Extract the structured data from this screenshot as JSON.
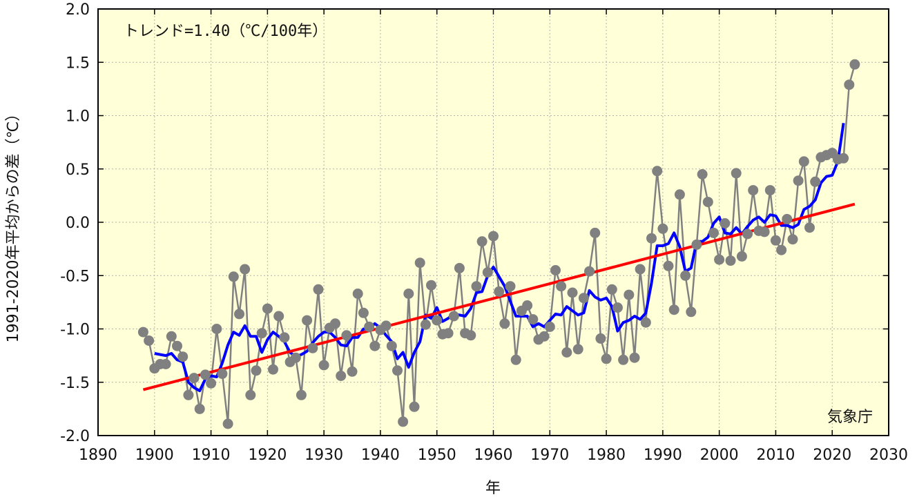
{
  "chart_data": {
    "type": "line",
    "title": "",
    "xlabel": "年",
    "ylabel": "1991-2020年平均からの差（℃）",
    "annotation": "トレンド=1.40（℃/100年）",
    "credit": "気象庁",
    "xlim": [
      1890,
      2030
    ],
    "ylim": [
      -2.0,
      2.0
    ],
    "xticks": [
      1890,
      1900,
      1910,
      1920,
      1930,
      1940,
      1950,
      1960,
      1970,
      1980,
      1990,
      2000,
      2010,
      2020,
      2030
    ],
    "yticks": [
      "2.0",
      "1.5",
      "1.0",
      "0.5",
      "0.0",
      "-0.5",
      "-1.0",
      "-1.5",
      "-2.0"
    ],
    "grid": true,
    "background": "#ffffd8",
    "colors": {
      "annual": "#808080",
      "moving_average": "#0000ff",
      "trend": "#ff0000"
    },
    "series": [
      {
        "key": "annual",
        "x": [
          1898,
          1899,
          1900,
          1901,
          1902,
          1903,
          1904,
          1905,
          1906,
          1907,
          1908,
          1909,
          1910,
          1911,
          1912,
          1913,
          1914,
          1915,
          1916,
          1917,
          1918,
          1919,
          1920,
          1921,
          1922,
          1923,
          1924,
          1925,
          1926,
          1927,
          1928,
          1929,
          1930,
          1931,
          1932,
          1933,
          1934,
          1935,
          1936,
          1937,
          1938,
          1939,
          1940,
          1941,
          1942,
          1943,
          1944,
          1945,
          1946,
          1947,
          1948,
          1949,
          1950,
          1951,
          1952,
          1953,
          1954,
          1955,
          1956,
          1957,
          1958,
          1959,
          1960,
          1961,
          1962,
          1963,
          1964,
          1965,
          1966,
          1967,
          1968,
          1969,
          1970,
          1971,
          1972,
          1973,
          1974,
          1975,
          1976,
          1977,
          1978,
          1979,
          1980,
          1981,
          1982,
          1983,
          1984,
          1985,
          1986,
          1987,
          1988,
          1989,
          1990,
          1991,
          1992,
          1993,
          1994,
          1995,
          1996,
          1997,
          1998,
          1999,
          2000,
          2001,
          2002,
          2003,
          2004,
          2005,
          2006,
          2007,
          2008,
          2009,
          2010,
          2011,
          2012,
          2013,
          2014,
          2015,
          2016,
          2017,
          2018,
          2019,
          2020,
          2021,
          2022,
          2023,
          2024
        ],
        "y": [
          -1.03,
          -1.11,
          -1.37,
          -1.33,
          -1.33,
          -1.07,
          -1.16,
          -1.26,
          -1.62,
          -1.46,
          -1.75,
          -1.43,
          -1.51,
          -1.0,
          -1.42,
          -1.89,
          -0.51,
          -0.86,
          -0.44,
          -1.62,
          -1.39,
          -1.04,
          -0.81,
          -1.38,
          -0.88,
          -1.08,
          -1.31,
          -1.27,
          -1.62,
          -0.92,
          -1.18,
          -0.63,
          -1.34,
          -0.99,
          -0.95,
          -1.44,
          -1.06,
          -1.4,
          -0.67,
          -0.85,
          -0.98,
          -1.16,
          -1.01,
          -0.97,
          -1.16,
          -1.39,
          -1.87,
          -0.67,
          -1.73,
          -0.38,
          -0.96,
          -0.59,
          -0.92,
          -1.05,
          -1.04,
          -0.88,
          -0.43,
          -1.04,
          -1.06,
          -0.6,
          -0.18,
          -0.47,
          -0.13,
          -0.65,
          -0.95,
          -0.6,
          -1.29,
          -0.83,
          -0.78,
          -0.91,
          -1.1,
          -1.07,
          -0.98,
          -0.45,
          -0.6,
          -1.22,
          -0.66,
          -1.19,
          -0.71,
          -0.46,
          -0.1,
          -1.09,
          -1.28,
          -0.63,
          -0.8,
          -1.29,
          -0.68,
          -1.27,
          -0.44,
          -0.94,
          -0.15,
          0.48,
          -0.06,
          -0.41,
          -0.82,
          0.26,
          -0.5,
          -0.84,
          -0.21,
          0.45,
          0.19,
          -0.1,
          -0.35,
          -0.01,
          -0.36,
          0.46,
          -0.32,
          -0.11,
          0.3,
          -0.08,
          -0.09,
          0.3,
          -0.17,
          -0.26,
          0.03,
          -0.16,
          0.39,
          0.57,
          -0.05,
          0.38,
          0.61,
          0.63,
          0.65,
          0.59,
          0.6,
          1.29,
          1.48
        ]
      },
      {
        "key": "moving_average",
        "x": [
          1900,
          1901,
          1902,
          1903,
          1904,
          1905,
          1906,
          1907,
          1908,
          1909,
          1910,
          1911,
          1912,
          1913,
          1914,
          1915,
          1916,
          1917,
          1918,
          1919,
          1920,
          1921,
          1922,
          1923,
          1924,
          1925,
          1926,
          1927,
          1928,
          1929,
          1930,
          1931,
          1932,
          1933,
          1934,
          1935,
          1936,
          1937,
          1938,
          1939,
          1940,
          1941,
          1942,
          1943,
          1944,
          1945,
          1946,
          1947,
          1948,
          1949,
          1950,
          1951,
          1952,
          1953,
          1954,
          1955,
          1956,
          1957,
          1958,
          1959,
          1960,
          1961,
          1962,
          1963,
          1964,
          1965,
          1966,
          1967,
          1968,
          1969,
          1970,
          1971,
          1972,
          1973,
          1974,
          1975,
          1976,
          1977,
          1978,
          1979,
          1980,
          1981,
          1982,
          1983,
          1984,
          1985,
          1986,
          1987,
          1988,
          1989,
          1990,
          1991,
          1992,
          1993,
          1994,
          1995,
          1996,
          1997,
          1998,
          1999,
          2000,
          2001,
          2002,
          2003,
          2004,
          2005,
          2006,
          2007,
          2008,
          2009,
          2010,
          2011,
          2012,
          2013,
          2014,
          2015,
          2016,
          2017,
          2018,
          2019,
          2020,
          2021,
          2022
        ],
        "y": [
          -1.23,
          -1.24,
          -1.25,
          -1.23,
          -1.29,
          -1.31,
          -1.5,
          -1.55,
          -1.58,
          -1.47,
          -1.44,
          -1.45,
          -1.32,
          -1.15,
          -1.03,
          -1.06,
          -0.97,
          -1.07,
          -1.07,
          -1.22,
          -1.1,
          -1.03,
          -1.07,
          -1.12,
          -1.22,
          -1.26,
          -1.24,
          -1.21,
          -1.13,
          -1.07,
          -1.03,
          -1.03,
          -1.08,
          -1.15,
          -1.16,
          -1.08,
          -1.08,
          -1.0,
          -1.0,
          -0.95,
          -0.99,
          -1.06,
          -1.12,
          -1.28,
          -1.22,
          -1.36,
          -1.22,
          -1.12,
          -0.87,
          -0.9,
          -0.8,
          -0.93,
          -0.9,
          -0.86,
          -0.87,
          -0.88,
          -0.81,
          -0.66,
          -0.65,
          -0.5,
          -0.42,
          -0.51,
          -0.6,
          -0.74,
          -0.88,
          -0.88,
          -0.88,
          -0.98,
          -0.95,
          -0.98,
          -0.92,
          -0.86,
          -0.87,
          -0.79,
          -0.83,
          -0.87,
          -0.85,
          -0.64,
          -0.7,
          -0.73,
          -0.71,
          -0.79,
          -1.02,
          -0.94,
          -0.92,
          -0.88,
          -0.91,
          -0.85,
          -0.57,
          -0.22,
          -0.22,
          -0.2,
          -0.1,
          -0.23,
          -0.46,
          -0.43,
          -0.18,
          -0.18,
          -0.14,
          -0.01,
          0.05,
          -0.1,
          -0.11,
          -0.05,
          -0.11,
          -0.04,
          0.02,
          0.05,
          0.0,
          0.07,
          0.06,
          -0.03,
          -0.03,
          -0.05,
          -0.02,
          0.12,
          0.15,
          0.21,
          0.37,
          0.43,
          0.44,
          0.57,
          0.93
        ]
      },
      {
        "key": "trend",
        "x": [
          1898,
          2024
        ],
        "y": [
          -1.57,
          0.17
        ]
      }
    ]
  }
}
